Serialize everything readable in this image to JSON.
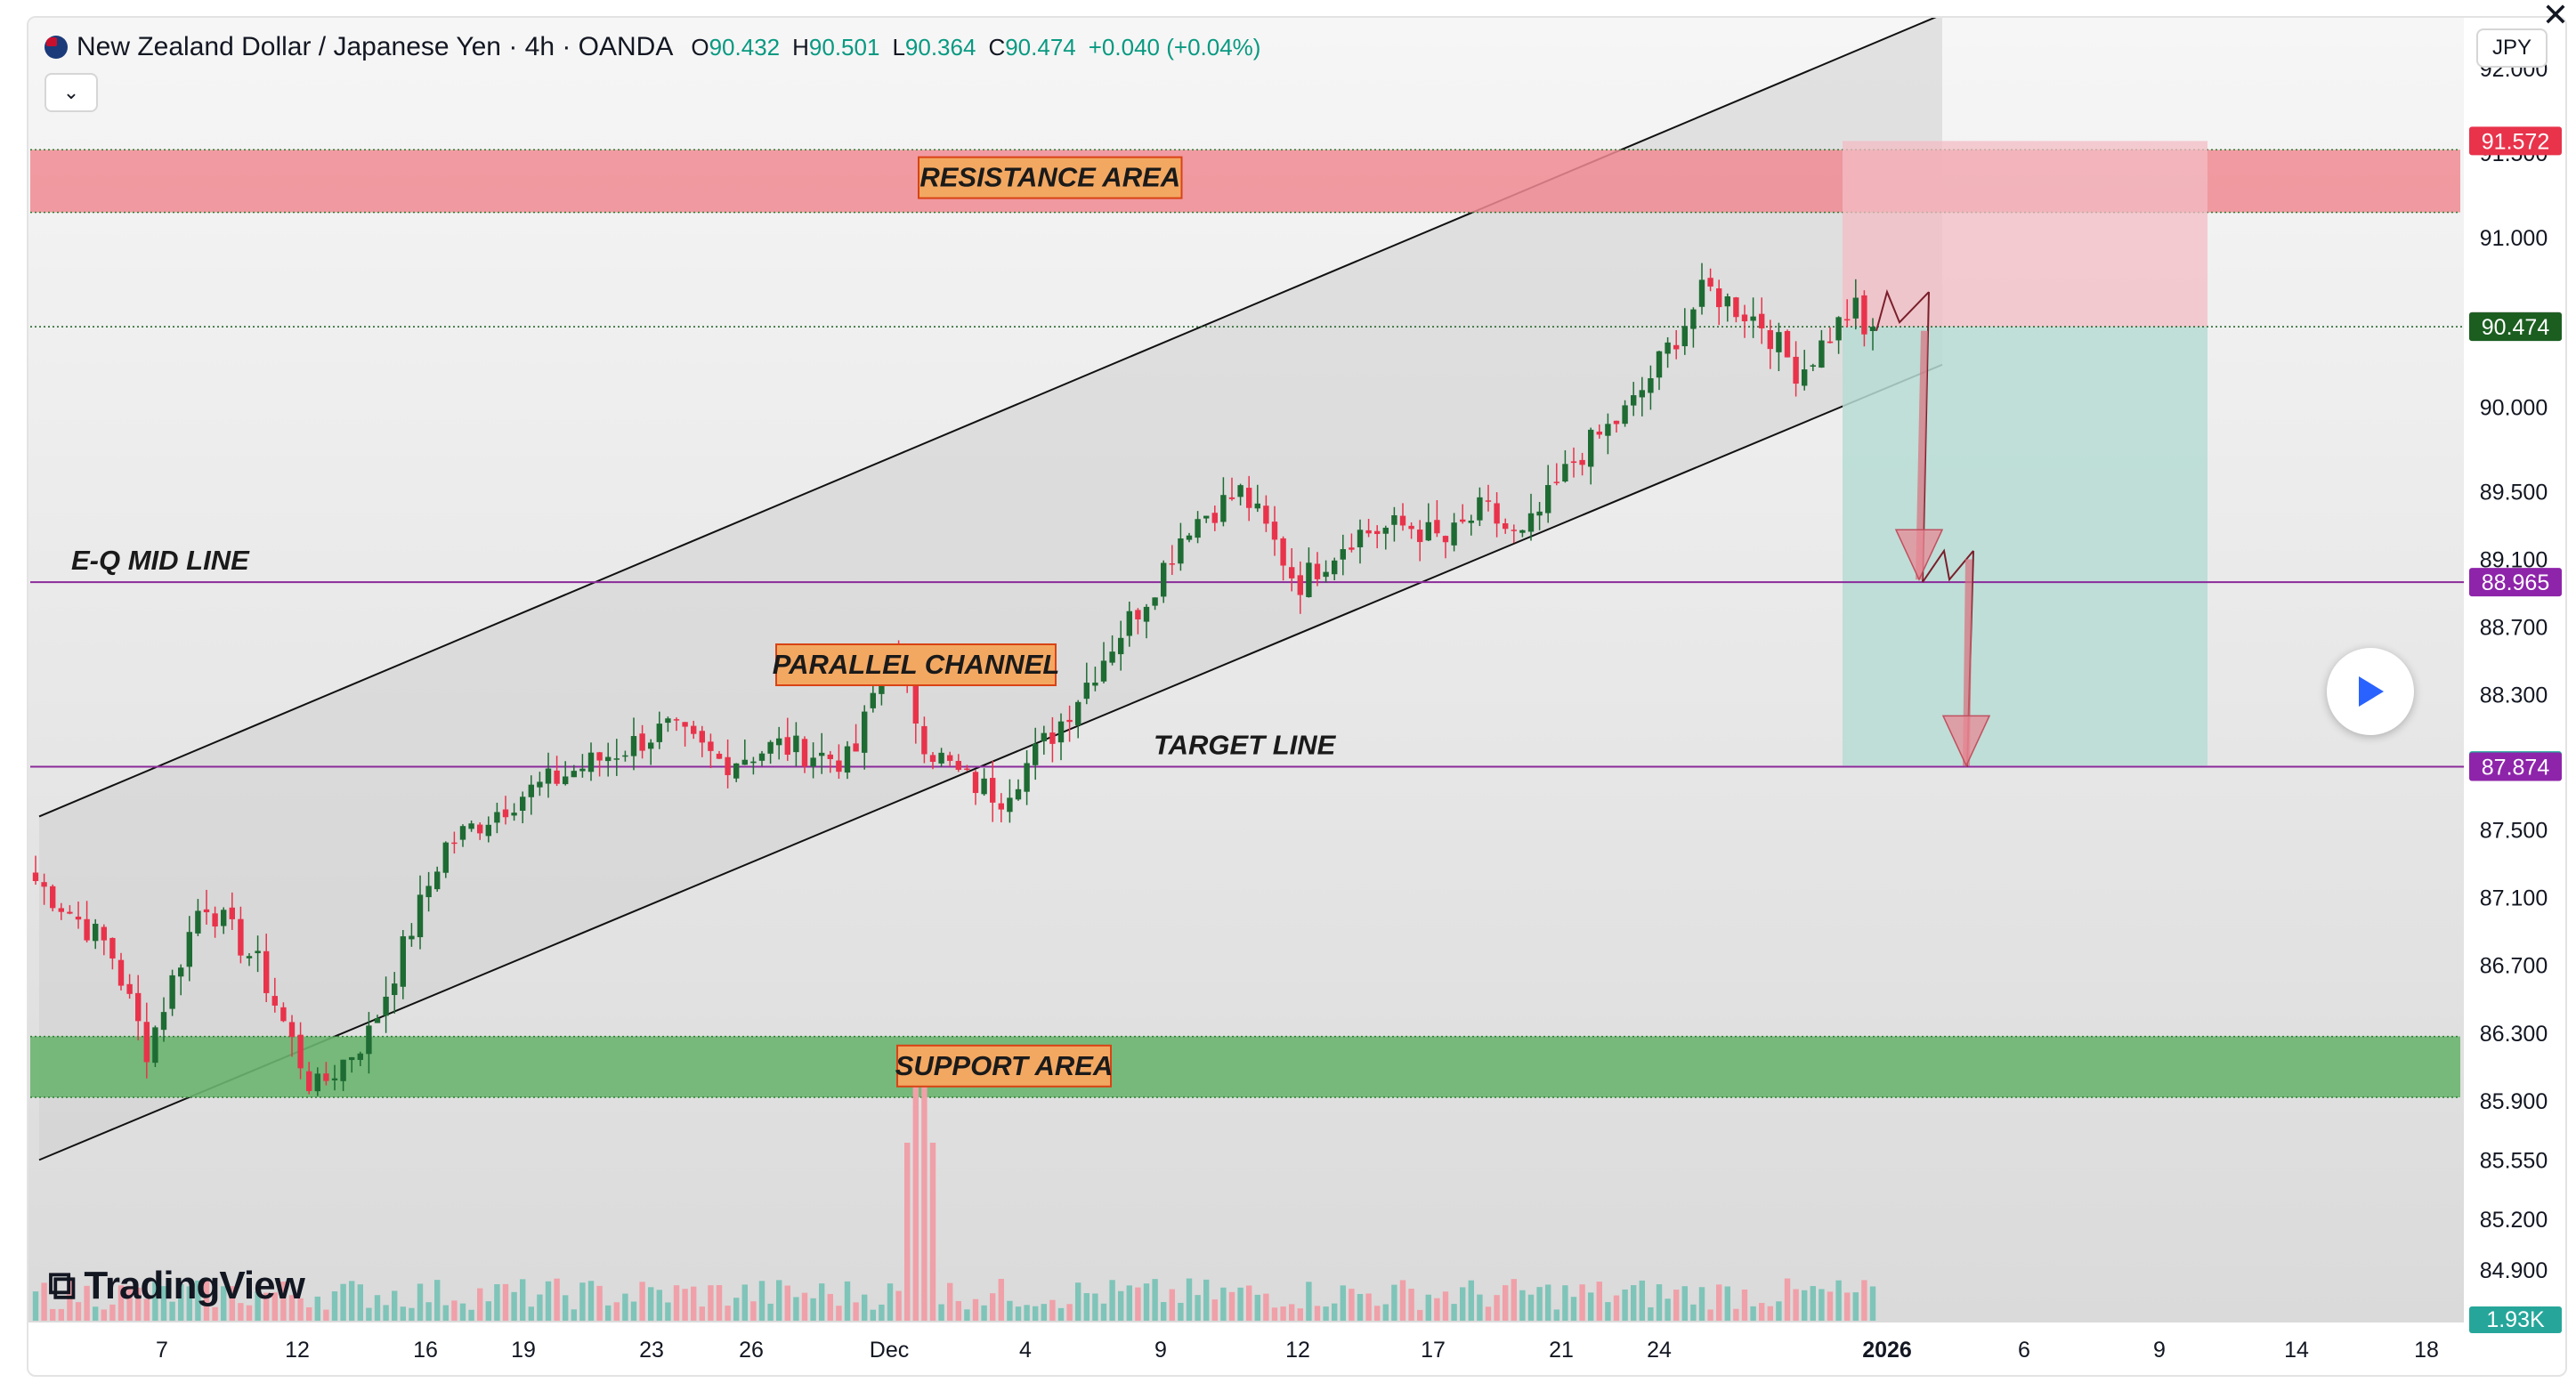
{
  "header": {
    "title": "New Zealand Dollar / Japanese Yen · 4h · OANDA",
    "ohlc": [
      {
        "k": "O",
        "v": "90.432"
      },
      {
        "k": "H",
        "v": "90.501"
      },
      {
        "k": "L",
        "v": "90.364"
      },
      {
        "k": "C",
        "v": "90.474"
      }
    ],
    "change": "+0.040 (+0.04%)",
    "collapse_icon": "chevron-down-icon"
  },
  "currency": "JPY",
  "branding": "TradingView",
  "colors": {
    "up": "#1e6b33",
    "down": "#e8334b",
    "resistance": "#f08a92",
    "support": "#6ab56f",
    "channel": "#cfcfcf",
    "profit_zone": "#b6dcd4",
    "loss_zone": "#f3bcc4",
    "guide_line": "#8a2a9a",
    "current_price": "#1b5e20"
  },
  "chart_data": {
    "type": "candlestick",
    "symbol": "NZDJPY",
    "timeframe": "4h",
    "ylim": [
      84.6,
      92.3
    ],
    "y_ticks": [
      "92.000",
      "91.500",
      "91.000",
      "90.000",
      "89.500",
      "89.100",
      "88.700",
      "88.300",
      "87.500",
      "87.100",
      "86.700",
      "86.300",
      "85.900",
      "85.550",
      "85.200",
      "84.900"
    ],
    "x_ticks": [
      "7",
      "12",
      "16",
      "19",
      "23",
      "26",
      "Dec",
      "4",
      "9",
      "12",
      "17",
      "21",
      "24",
      "2026",
      "6",
      "9",
      "14",
      "18"
    ],
    "price_labels": [
      {
        "value": "91.572",
        "price": 91.572,
        "color": "#e8334b"
      },
      {
        "value": "90.476",
        "price": 90.476,
        "color": "#6b6b6b"
      },
      {
        "value": "90.474",
        "price": 90.474,
        "color": "#1b5e20"
      },
      {
        "value": "88.965",
        "price": 88.965,
        "color": "#8e24aa"
      },
      {
        "value": "87.881",
        "price": 87.881,
        "color": "#26a69a"
      },
      {
        "value": "87.874",
        "price": 87.874,
        "color": "#8e24aa"
      }
    ],
    "volume_label": "1.93K",
    "zones": [
      {
        "name": "RESISTANCE AREA",
        "from": 91.15,
        "to": 91.52
      },
      {
        "name": "SUPPORT AREA",
        "from": 85.92,
        "to": 86.28
      }
    ],
    "levels": [
      {
        "name": "E-Q MID LINE",
        "price": 88.965
      },
      {
        "name": "TARGET LINE",
        "price": 87.874
      }
    ],
    "channel_label": "PARALLEL CHANNEL",
    "trade": {
      "entry": 90.474,
      "stop": 91.572,
      "target": 87.881
    },
    "candles": {
      "count": 216,
      "start_close": 87.2,
      "last_close": 90.474,
      "path": [
        [
          0,
          87.2
        ],
        [
          8,
          86.8
        ],
        [
          12,
          86.2
        ],
        [
          18,
          87.1
        ],
        [
          24,
          86.7
        ],
        [
          30,
          85.95
        ],
        [
          36,
          86.3
        ],
        [
          44,
          87.4
        ],
        [
          52,
          87.7
        ],
        [
          60,
          87.9
        ],
        [
          68,
          88.1
        ],
        [
          74,
          87.9
        ],
        [
          80,
          88.0
        ],
        [
          88,
          87.9
        ],
        [
          92,
          88.6
        ],
        [
          96,
          88.0
        ],
        [
          100,
          87.8
        ],
        [
          104,
          87.7
        ],
        [
          110,
          88.1
        ],
        [
          116,
          88.6
        ],
        [
          120,
          88.9
        ],
        [
          124,
          89.3
        ],
        [
          130,
          89.5
        ],
        [
          134,
          89.15
        ],
        [
          136,
          88.95
        ],
        [
          142,
          89.25
        ],
        [
          148,
          89.3
        ],
        [
          152,
          89.2
        ],
        [
          156,
          89.4
        ],
        [
          160,
          89.2
        ],
        [
          166,
          89.7
        ],
        [
          172,
          90.0
        ],
        [
          180,
          90.7
        ],
        [
          186,
          90.5
        ],
        [
          190,
          90.2
        ],
        [
          196,
          90.6
        ],
        [
          198,
          90.25
        ]
      ]
    }
  }
}
